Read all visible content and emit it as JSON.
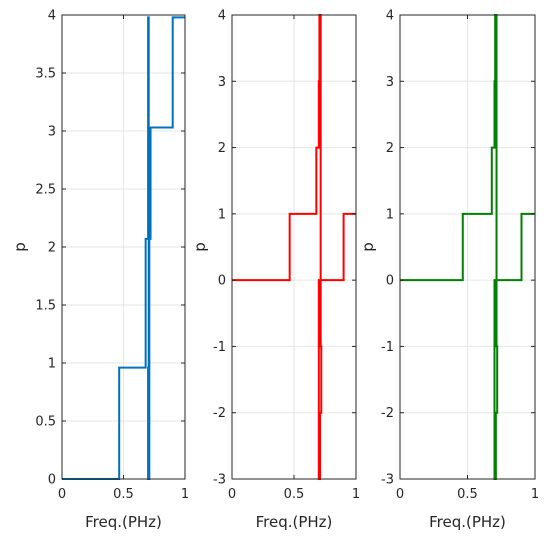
{
  "chart_data": [
    {
      "type": "line",
      "color": "#0072bd",
      "xlabel": "Freq.(PHz)",
      "ylabel": "p",
      "xlim": [
        0,
        1
      ],
      "ylim": [
        0,
        4
      ],
      "xticks": [
        0,
        0.5,
        1
      ],
      "xtick_labels": [
        "0",
        "0.5",
        "1"
      ],
      "yticks": [
        0,
        0.5,
        1,
        1.5,
        2,
        2.5,
        3,
        3.5,
        4
      ],
      "ytick_labels": [
        "0",
        "0.5",
        "1",
        "1.5",
        "2",
        "2.5",
        "3",
        "3.5",
        "4"
      ],
      "grid": true,
      "series": [
        {
          "x": [
            0,
            0.465,
            0.465,
            0.68,
            0.68,
            0.7,
            0.7,
            0.705,
            0.705,
            0.7,
            0.7,
            0.71,
            0.71,
            0.72,
            0.72,
            0.9,
            0.9,
            1.0
          ],
          "y": [
            0,
            0,
            0.96,
            0.96,
            2.07,
            2.07,
            3.98,
            3.98,
            0.96,
            0.96,
            0,
            0,
            2.07,
            2.07,
            3.03,
            3.03,
            3.98,
            3.98
          ]
        }
      ]
    },
    {
      "type": "line",
      "color": "#ff0000",
      "xlabel": "Freq.(PHz)",
      "ylabel": "p",
      "xlim": [
        0,
        1
      ],
      "ylim": [
        -3,
        4
      ],
      "xticks": [
        0,
        0.5,
        1
      ],
      "xtick_labels": [
        "0",
        "0.5",
        "1"
      ],
      "yticks": [
        -3,
        -2,
        -1,
        0,
        1,
        2,
        3,
        4
      ],
      "ytick_labels": [
        "-3",
        "-2",
        "-1",
        "0",
        "1",
        "2",
        "3",
        "4"
      ],
      "grid": true,
      "series": [
        {
          "x": [
            0,
            0.465,
            0.465,
            0.68,
            0.68,
            0.7,
            0.7,
            0.705,
            0.705,
            0.715,
            0.715,
            0.72,
            0.72,
            0.71,
            0.71,
            0.7,
            0.7,
            0.74,
            0.74,
            0.9,
            0.9,
            1.0
          ],
          "y": [
            0,
            0,
            1,
            1,
            2,
            2,
            3,
            3,
            4,
            4,
            -1,
            -1,
            -2,
            -2,
            -3,
            -3,
            0,
            0,
            0,
            0,
            1,
            1
          ]
        }
      ]
    },
    {
      "type": "line",
      "color": "#007f00",
      "xlabel": "Freq.(PHz)",
      "ylabel": "p",
      "xlim": [
        0,
        1
      ],
      "ylim": [
        -3,
        4
      ],
      "xticks": [
        0,
        0.5,
        1
      ],
      "xtick_labels": [
        "0",
        "0.5",
        "1"
      ],
      "yticks": [
        -3,
        -2,
        -1,
        0,
        1,
        2,
        3,
        4
      ],
      "ytick_labels": [
        "-3",
        "-2",
        "-1",
        "0",
        "1",
        "2",
        "3",
        "4"
      ],
      "grid": true,
      "series": [
        {
          "x": [
            0,
            0.465,
            0.465,
            0.68,
            0.68,
            0.7,
            0.7,
            0.705,
            0.705,
            0.715,
            0.715,
            0.72,
            0.72,
            0.71,
            0.71,
            0.7,
            0.7,
            0.74,
            0.74,
            0.9,
            0.9,
            1.0
          ],
          "y": [
            0,
            0,
            1,
            1,
            2,
            2,
            3,
            3,
            4,
            4,
            -1,
            -1,
            -2,
            -2,
            -3,
            -3,
            0,
            0,
            0,
            0,
            1,
            1
          ]
        }
      ]
    }
  ]
}
